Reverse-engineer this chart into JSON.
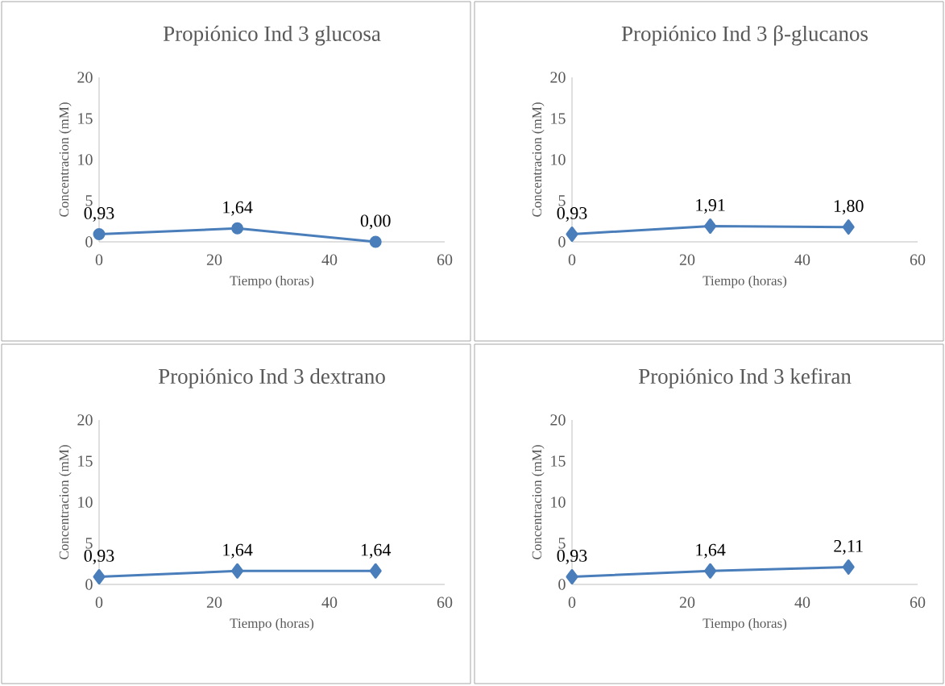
{
  "chart_data": [
    {
      "type": "line",
      "title": "Propiónico Ind 3 glucosa",
      "xlabel": "Tiempo (horas)",
      "ylabel": "Concentracion (mM)",
      "x": [
        0,
        24,
        48
      ],
      "xlim": [
        0,
        60
      ],
      "ylim": [
        0,
        20
      ],
      "xticks": [
        0,
        20,
        40,
        60
      ],
      "yticks": [
        0,
        5,
        10,
        15,
        20
      ],
      "marker": "circle",
      "series": [
        {
          "color": "#4a7ebb",
          "values": [
            0.93,
            1.64,
            0.0
          ],
          "value_labels": [
            "0,93",
            "1,64",
            "0,00"
          ]
        }
      ]
    },
    {
      "type": "line",
      "title": "Propiónico Ind 3 β-glucanos",
      "xlabel": "Tiempo (horas)",
      "ylabel": "Concentracion (mM)",
      "x": [
        0,
        24,
        48
      ],
      "xlim": [
        0,
        60
      ],
      "ylim": [
        0,
        20
      ],
      "xticks": [
        0,
        20,
        40,
        60
      ],
      "yticks": [
        0,
        5,
        10,
        15,
        20
      ],
      "marker": "diamond",
      "series": [
        {
          "color": "#4a7ebb",
          "values": [
            0.93,
            1.91,
            1.8
          ],
          "value_labels": [
            "0,93",
            "1,91",
            "1,80"
          ]
        }
      ]
    },
    {
      "type": "line",
      "title": "Propiónico Ind 3 dextrano",
      "xlabel": "Tiempo (horas)",
      "ylabel": "Concentracion (mM)",
      "x": [
        0,
        24,
        48
      ],
      "xlim": [
        0,
        60
      ],
      "ylim": [
        0,
        20
      ],
      "xticks": [
        0,
        20,
        40,
        60
      ],
      "yticks": [
        0,
        5,
        10,
        15,
        20
      ],
      "marker": "diamond",
      "series": [
        {
          "color": "#4a7ebb",
          "values": [
            0.93,
            1.64,
            1.64
          ],
          "value_labels": [
            "0,93",
            "1,64",
            "1,64"
          ]
        }
      ]
    },
    {
      "type": "line",
      "title": "Propiónico Ind 3 kefiran",
      "xlabel": "Tiempo (horas)",
      "ylabel": "Concentracion (mM)",
      "x": [
        0,
        24,
        48
      ],
      "xlim": [
        0,
        60
      ],
      "ylim": [
        0,
        20
      ],
      "xticks": [
        0,
        20,
        40,
        60
      ],
      "yticks": [
        0,
        5,
        10,
        15,
        20
      ],
      "marker": "diamond",
      "series": [
        {
          "color": "#4a7ebb",
          "values": [
            0.93,
            1.64,
            2.11
          ],
          "value_labels": [
            "0,93",
            "1,64",
            "2,11"
          ]
        }
      ]
    }
  ]
}
